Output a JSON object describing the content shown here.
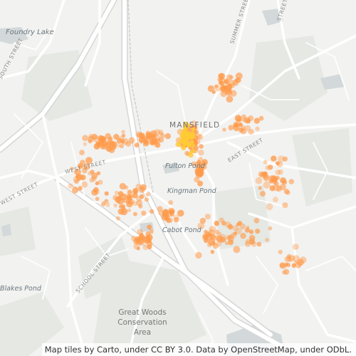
{
  "map": {
    "place_labels": {
      "town": "MANSFIELD",
      "foundry_lake": "Foundry Lake",
      "fulton_pond": "Fulton Pond",
      "kingman_pond": "Kingman Pond",
      "cabot_pond": "Cabot Pond",
      "blakes_pond": "Blakes Pond",
      "great_woods": [
        "Great Woods",
        "Conservation",
        "Area"
      ]
    },
    "street_labels": {
      "summer_street": "SUMMER STREET",
      "west_street": "WEST STREET",
      "east_street": "EAST STREET",
      "school_street": "SCHOOL STREET",
      "south_street": "SOUTH STREET",
      "west_street_sw": "WEST STREET",
      "north_ne": "STREET"
    },
    "attribution": "Map tiles by Carto, under CC BY 3.0. Data by OpenStreetMap, under ODbL.",
    "colors": {
      "land": "#f2f2f0",
      "green": "#e4e7e2",
      "water": "#d5dadb",
      "road": "#ffffff",
      "road_casing": "#dcdcdc",
      "heat_dot": "#ff9a4a",
      "heat_core": "#ffcc33"
    }
  }
}
